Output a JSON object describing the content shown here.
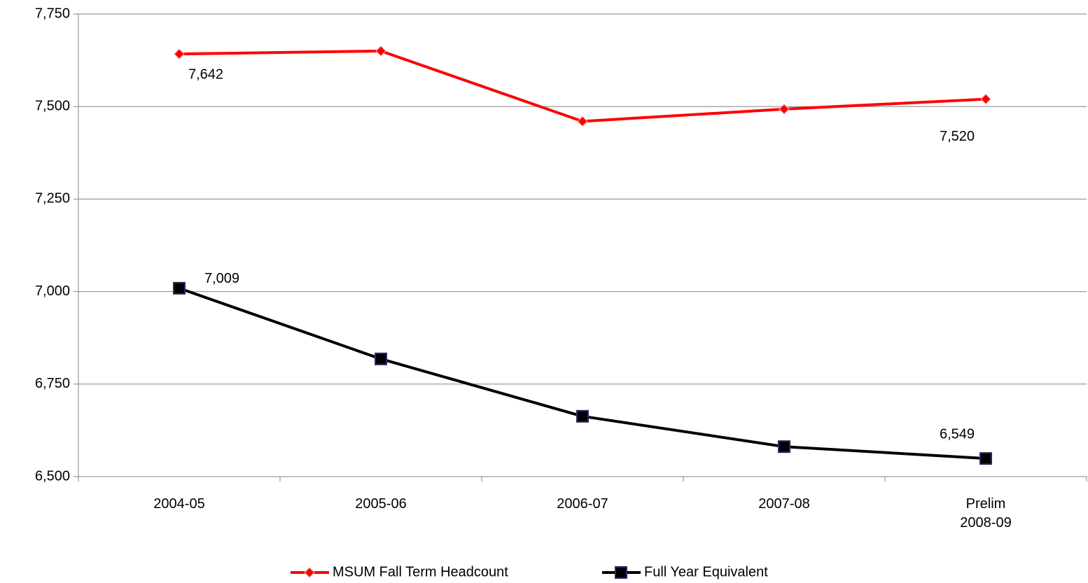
{
  "chart_data": {
    "type": "line",
    "categories": [
      "2004-05",
      "2005-06",
      "2006-07",
      "2007-08",
      "Prelim 2008-09"
    ],
    "series": [
      {
        "name": "MSUM Fall Term Headcount",
        "color": "#ff0000",
        "marker": "diamond",
        "values": [
          7642,
          7650,
          7460,
          7493,
          7520
        ],
        "value_labels": [
          "7,642",
          null,
          null,
          null,
          "7,520"
        ]
      },
      {
        "name": "Full Year Equivalent",
        "color": "#000000",
        "marker": "square",
        "values": [
          7009,
          6818,
          6663,
          6581,
          6549
        ],
        "value_labels": [
          "7,009",
          null,
          null,
          null,
          "6,549"
        ]
      }
    ],
    "ylim": [
      6500,
      7750
    ],
    "yticks": [
      {
        "value": 6500,
        "label": "6,500"
      },
      {
        "value": 6750,
        "label": "6,750"
      },
      {
        "value": 7000,
        "label": "7,000"
      },
      {
        "value": 7250,
        "label": "7,250"
      },
      {
        "value": 7500,
        "label": "7,500"
      },
      {
        "value": 7750,
        "label": "7,750"
      }
    ],
    "grid": true,
    "legend": "bottom"
  }
}
